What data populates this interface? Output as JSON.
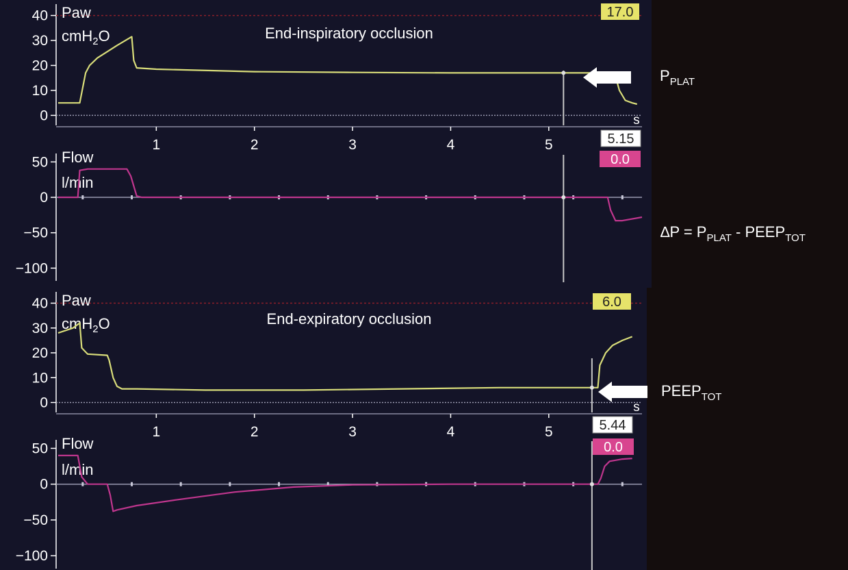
{
  "colors": {
    "panel_bg": "#141428",
    "pressure_trace": "#d9dd7a",
    "flow_trace": "#c0368e",
    "pressure_box": "#e6e36a",
    "flow_box": "#d8458f",
    "cursor_box": "#ffffff",
    "axis_text": "#ffffff",
    "zero_line": "#9a9ab0",
    "limit_line": "#8a1f2a",
    "cursor_line": "#c8c8c8"
  },
  "chart_data": [
    {
      "id": "top-paw",
      "type": "line",
      "ylabel": [
        "Paw",
        "cmH2O"
      ],
      "annotation": "End-inspiratory occlusion",
      "ylim": [
        -4,
        44
      ],
      "yticks": [
        0,
        10,
        20,
        30,
        40
      ],
      "xlim": [
        0,
        5.95
      ],
      "xticks": [
        1,
        2,
        3,
        4,
        5
      ],
      "xunit": "s",
      "limit_line": 40,
      "readout": "17.0",
      "cursor_x": 5.15,
      "cursor_readout": "5.15",
      "series": [
        {
          "points": [
            [
              0,
              5
            ],
            [
              0.22,
              5
            ],
            [
              0.25,
              11
            ],
            [
              0.28,
              17
            ],
            [
              0.32,
              20
            ],
            [
              0.4,
              23
            ],
            [
              0.5,
              25.5
            ],
            [
              0.6,
              28
            ],
            [
              0.75,
              31.5
            ],
            [
              0.77,
              22
            ],
            [
              0.8,
              19
            ],
            [
              1.0,
              18.5
            ],
            [
              2.0,
              17.5
            ],
            [
              3.0,
              17.2
            ],
            [
              4.0,
              17
            ],
            [
              5.0,
              17
            ],
            [
              5.15,
              17
            ],
            [
              5.67,
              17
            ],
            [
              5.72,
              10
            ],
            [
              5.78,
              6
            ],
            [
              5.85,
              5
            ],
            [
              5.9,
              4.5
            ]
          ]
        }
      ]
    },
    {
      "id": "top-flow",
      "type": "line",
      "ylabel": [
        "Flow",
        "l/min"
      ],
      "ylim": [
        -118,
        60
      ],
      "yticks": [
        50,
        0,
        -50,
        -100
      ],
      "ytick_labels": [
        "50",
        "0",
        "−50",
        "−100"
      ],
      "xlim": [
        0,
        5.95
      ],
      "readout": "0.0",
      "cursor_x": 5.15,
      "series": [
        {
          "points": [
            [
              0,
              0
            ],
            [
              0.2,
              0
            ],
            [
              0.22,
              38
            ],
            [
              0.3,
              40
            ],
            [
              0.7,
              40
            ],
            [
              0.74,
              30
            ],
            [
              0.8,
              2
            ],
            [
              0.85,
              0
            ],
            [
              5.15,
              0
            ],
            [
              5.6,
              0
            ],
            [
              5.63,
              -18
            ],
            [
              5.68,
              -33
            ],
            [
              5.75,
              -33
            ],
            [
              5.95,
              -28
            ]
          ]
        }
      ]
    },
    {
      "id": "bottom-paw",
      "type": "line",
      "ylabel": [
        "Paw",
        "cmH2O"
      ],
      "annotation": "End-expiratory occlusion",
      "ylim": [
        -4,
        44
      ],
      "yticks": [
        0,
        10,
        20,
        30,
        40
      ],
      "xlim": [
        0,
        5.95
      ],
      "xticks": [
        1,
        2,
        3,
        4,
        5
      ],
      "xunit": "s",
      "limit_line": 40,
      "readout": "6.0",
      "cursor_x": 5.44,
      "cursor_readout": "5.44",
      "series": [
        {
          "points": [
            [
              0,
              28
            ],
            [
              0.15,
              30
            ],
            [
              0.22,
              32
            ],
            [
              0.24,
              22
            ],
            [
              0.3,
              19.5
            ],
            [
              0.5,
              19
            ],
            [
              0.52,
              17
            ],
            [
              0.56,
              10
            ],
            [
              0.6,
              6.5
            ],
            [
              0.65,
              5.5
            ],
            [
              0.8,
              5.5
            ],
            [
              1.5,
              5
            ],
            [
              2.5,
              5
            ],
            [
              3.5,
              5.5
            ],
            [
              4.5,
              6
            ],
            [
              5.44,
              6
            ],
            [
              5.5,
              6
            ],
            [
              5.52,
              15
            ],
            [
              5.58,
              20
            ],
            [
              5.65,
              23
            ],
            [
              5.75,
              25
            ],
            [
              5.85,
              26.5
            ]
          ]
        }
      ]
    },
    {
      "id": "bottom-flow",
      "type": "line",
      "ylabel": [
        "Flow",
        "l/min"
      ],
      "ylim": [
        -118,
        60
      ],
      "yticks": [
        50,
        0,
        -50,
        -100
      ],
      "ytick_labels": [
        "50",
        "0",
        "−50",
        "−100"
      ],
      "xlim": [
        0,
        5.95
      ],
      "readout": "0.0",
      "cursor_x": 5.44,
      "series": [
        {
          "points": [
            [
              0,
              40
            ],
            [
              0.2,
              40
            ],
            [
              0.24,
              10
            ],
            [
              0.3,
              0
            ],
            [
              0.5,
              0
            ],
            [
              0.53,
              -15
            ],
            [
              0.56,
              -38
            ],
            [
              0.6,
              -36
            ],
            [
              0.8,
              -30
            ],
            [
              1.2,
              -22
            ],
            [
              1.8,
              -11
            ],
            [
              2.4,
              -4
            ],
            [
              3.0,
              -1
            ],
            [
              4.0,
              0
            ],
            [
              5.5,
              0
            ],
            [
              5.53,
              8
            ],
            [
              5.57,
              25
            ],
            [
              5.62,
              32
            ],
            [
              5.75,
              35
            ],
            [
              5.85,
              36
            ]
          ]
        }
      ]
    }
  ],
  "side_labels": {
    "pplat_main": "P",
    "pplat_sub": "PLAT",
    "delta_prefix": "∆P = P",
    "delta_sub1": "PLAT",
    "delta_mid": " - PEEP",
    "delta_sub2": "TOT",
    "peep_main": "PEEP",
    "peep_sub": "TOT"
  }
}
